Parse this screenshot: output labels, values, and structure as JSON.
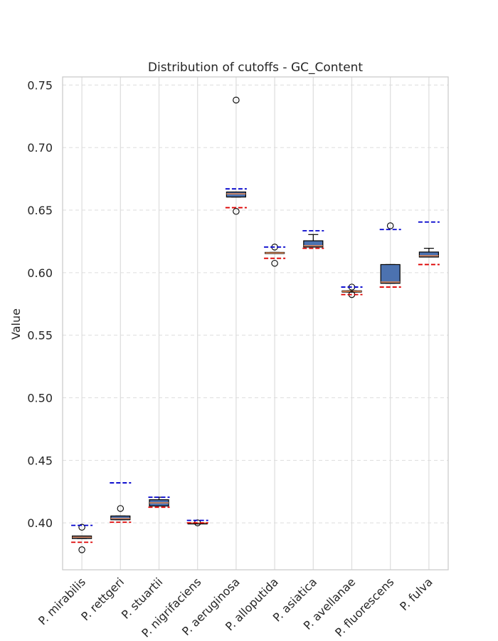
{
  "chart_data": {
    "type": "box",
    "title": "Distribution of cutoffs - GC_Content",
    "xlabel": "",
    "ylabel": "Value",
    "ylim": [
      0.3625,
      0.7565
    ],
    "yticks": [
      "0.40",
      "0.45",
      "0.50",
      "0.55",
      "0.60",
      "0.65",
      "0.70",
      "0.75"
    ],
    "grid": true,
    "colors": {
      "box_fill": "#4c72b0",
      "box_edge": "#000000",
      "median": "#dd8452",
      "upper_cutoff": "#0000cc",
      "lower_cutoff": "#dd0000",
      "grid": "#dddddd",
      "frame": "#cccccc"
    },
    "categories": [
      "P. mirabilis",
      "P. rettgeri",
      "P. stuartii",
      "P. nigrifaciens",
      "P. aeruginosa",
      "P. alloputida",
      "P. asiatica",
      "P. avellanae",
      "P. fluorescens",
      "P. fulva"
    ],
    "boxes": [
      {
        "whislo": 0.3875,
        "q1": 0.3875,
        "med": 0.3885,
        "q3": 0.3895,
        "whishi": 0.3895,
        "fliers": [
          0.3785,
          0.3965
        ],
        "upper_cutoff": 0.398,
        "lower_cutoff": 0.3845
      },
      {
        "whislo": 0.4025,
        "q1": 0.4025,
        "med": 0.4035,
        "q3": 0.4055,
        "whishi": 0.4055,
        "fliers": [
          0.4115
        ],
        "upper_cutoff": 0.432,
        "lower_cutoff": 0.4005
      },
      {
        "whislo": 0.4135,
        "q1": 0.4135,
        "med": 0.416,
        "q3": 0.4185,
        "whishi": 0.4205,
        "fliers": [],
        "upper_cutoff": 0.4205,
        "lower_cutoff": 0.4125
      },
      {
        "whislo": 0.4,
        "q1": 0.4,
        "med": 0.4,
        "q3": 0.4,
        "whishi": 0.4,
        "fliers": [
          0.4
        ],
        "upper_cutoff": 0.402,
        "lower_cutoff": 0.4
      },
      {
        "whislo": 0.6605,
        "q1": 0.6605,
        "med": 0.663,
        "q3": 0.6645,
        "whishi": 0.6645,
        "fliers": [
          0.738,
          0.649
        ],
        "upper_cutoff": 0.667,
        "lower_cutoff": 0.652
      },
      {
        "whislo": 0.6155,
        "q1": 0.6155,
        "med": 0.6158,
        "q3": 0.6162,
        "whishi": 0.6162,
        "fliers": [
          0.6205,
          0.6075
        ],
        "upper_cutoff": 0.6205,
        "lower_cutoff": 0.6115
      },
      {
        "whislo": 0.6205,
        "q1": 0.6205,
        "med": 0.6215,
        "q3": 0.6255,
        "whishi": 0.6305,
        "fliers": [],
        "upper_cutoff": 0.6335,
        "lower_cutoff": 0.6195
      },
      {
        "whislo": 0.5845,
        "q1": 0.5845,
        "med": 0.585,
        "q3": 0.5855,
        "whishi": 0.5855,
        "fliers": [
          0.5885,
          0.5825
        ],
        "upper_cutoff": 0.5885,
        "lower_cutoff": 0.5825
      },
      {
        "whislo": 0.5915,
        "q1": 0.5915,
        "med": 0.5925,
        "q3": 0.6065,
        "whishi": 0.6065,
        "fliers": [
          0.6375
        ],
        "upper_cutoff": 0.6345,
        "lower_cutoff": 0.5885
      },
      {
        "whislo": 0.6125,
        "q1": 0.6125,
        "med": 0.6135,
        "q3": 0.6165,
        "whishi": 0.6195,
        "fliers": [],
        "upper_cutoff": 0.6405,
        "lower_cutoff": 0.6065
      }
    ]
  }
}
